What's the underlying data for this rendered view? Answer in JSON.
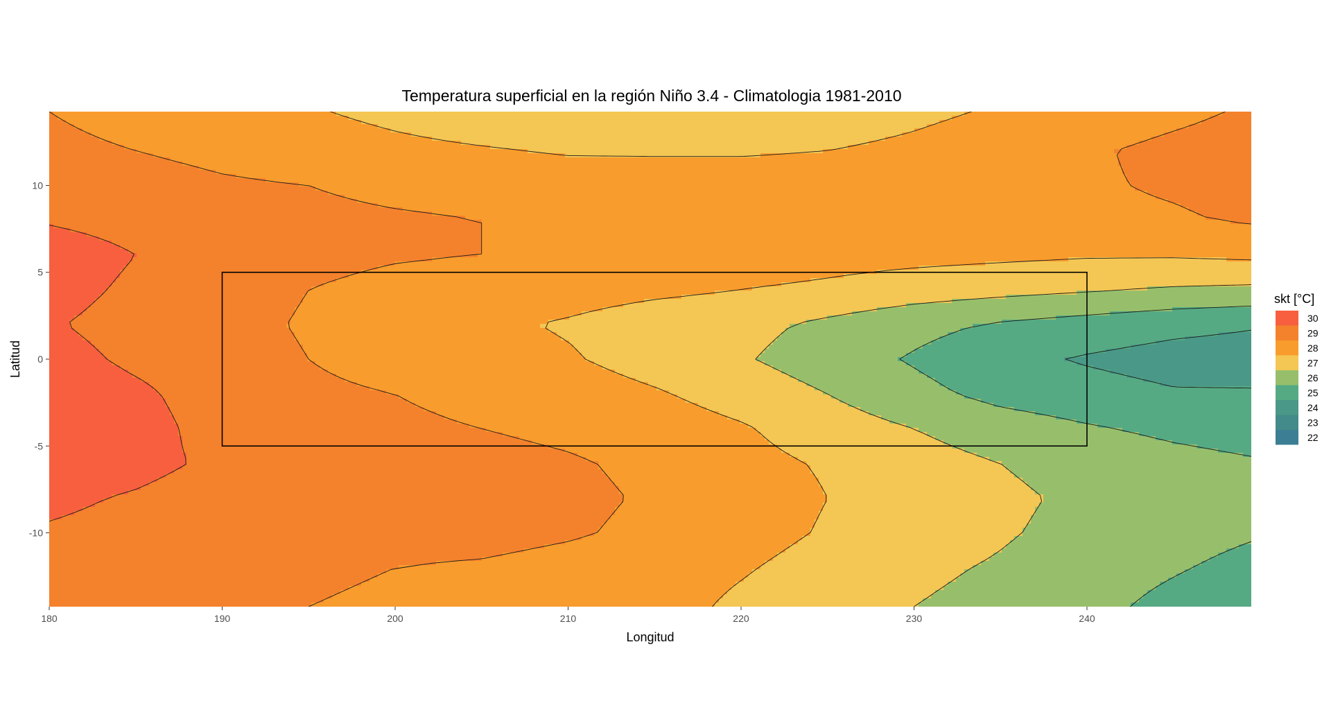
{
  "chart_data": {
    "type": "contour",
    "title": "Temperatura superficial en la región Niño 3.4 - Climatologia 1981-2010",
    "xlabel": "Longitud",
    "ylabel": "Latitud",
    "xlim": [
      180,
      249.5
    ],
    "ylim": [
      -14.25,
      14.25
    ],
    "x_ticks": [
      180,
      190,
      200,
      210,
      220,
      230,
      240
    ],
    "y_ticks": [
      -10,
      -5,
      0,
      5,
      10
    ],
    "x_tick_labels": [
      "180",
      "190",
      "200",
      "210",
      "220",
      "230",
      "240"
    ],
    "y_tick_labels": [
      "-10",
      "-5",
      "0",
      "5",
      "10"
    ],
    "grid": false,
    "legend": {
      "title": "skt [°C]",
      "placement": "right",
      "levels": [
        "30",
        "29",
        "28",
        "27",
        "26",
        "25",
        "24",
        "23",
        "22"
      ],
      "colors": [
        "#F75F3E",
        "#F4812C",
        "#F89C2D",
        "#F4C653",
        "#97BF6B",
        "#55AA84",
        "#4A9887",
        "#438B8A",
        "#3C7E94"
      ]
    },
    "region_box": {
      "name": "Niño 3.4",
      "lon": [
        190,
        240
      ],
      "lat": [
        -5,
        5
      ]
    },
    "field": {
      "lon": [
        180,
        185,
        190,
        195,
        200,
        205,
        210,
        215,
        220,
        225,
        230,
        235,
        240,
        245,
        249.5
      ],
      "lat": [
        -14.25,
        -12,
        -10,
        -8,
        -6,
        -4,
        -2,
        0,
        2,
        4,
        6,
        8,
        10,
        12,
        14.25
      ],
      "values": [
        [
          28.8,
          28.7,
          28.6,
          28.5,
          28.4,
          28.3,
          28.1,
          27.9,
          27.3,
          26.8,
          26.5,
          26.2,
          25.8,
          25.2,
          24.6
        ],
        [
          29.0,
          28.9,
          28.8,
          28.6,
          28.5,
          28.4,
          28.2,
          28.0,
          27.6,
          27.1,
          26.7,
          26.4,
          26.0,
          25.6,
          25.2
        ],
        [
          29.4,
          29.2,
          29.0,
          28.9,
          28.8,
          28.8,
          28.6,
          28.3,
          27.9,
          27.4,
          27.0,
          26.6,
          26.2,
          25.9,
          25.6
        ],
        [
          29.7,
          29.4,
          29.0,
          29.0,
          28.9,
          28.9,
          28.7,
          28.4,
          28.0,
          27.5,
          27.1,
          26.7,
          26.3,
          26.0,
          25.8
        ],
        [
          30.1,
          29.8,
          29.3,
          29.0,
          28.9,
          28.8,
          28.6,
          28.3,
          27.8,
          27.4,
          26.9,
          26.5,
          26.1,
          25.8,
          25.6
        ],
        [
          30.3,
          29.9,
          29.1,
          28.8,
          28.7,
          28.5,
          28.3,
          28.0,
          27.6,
          27.0,
          26.5,
          26.0,
          25.6,
          25.3,
          25.1
        ],
        [
          30.2,
          29.7,
          29.0,
          28.7,
          28.5,
          28.2,
          28.0,
          27.6,
          27.1,
          26.5,
          25.8,
          25.2,
          24.9,
          24.6,
          24.6
        ],
        [
          29.9,
          29.3,
          28.9,
          28.5,
          28.1,
          27.9,
          27.6,
          27.1,
          26.6,
          26.0,
          25.4,
          24.8,
          24.4,
          24.1,
          24.0
        ],
        [
          29.6,
          29.1,
          28.8,
          28.4,
          28.0,
          27.7,
          27.4,
          27.0,
          26.8,
          26.3,
          25.8,
          25.4,
          25.1,
          24.8,
          24.6
        ],
        [
          29.9,
          29.3,
          28.9,
          28.5,
          28.2,
          28.0,
          27.9,
          27.7,
          27.5,
          27.3,
          27.0,
          26.8,
          26.6,
          26.4,
          26.3
        ],
        [
          30.1,
          29.5,
          29.0,
          28.8,
          28.6,
          28.5,
          28.4,
          28.3,
          28.1,
          27.9,
          27.8,
          27.7,
          27.6,
          27.6,
          27.7
        ],
        [
          29.4,
          29.1,
          28.9,
          28.7,
          28.6,
          28.5,
          28.4,
          28.4,
          28.3,
          28.3,
          28.2,
          28.2,
          28.3,
          28.4,
          28.6
        ],
        [
          28.9,
          28.8,
          28.6,
          28.5,
          28.3,
          28.2,
          28.1,
          28.0,
          28.0,
          28.0,
          28.1,
          28.2,
          28.4,
          28.6,
          28.8
        ],
        [
          28.7,
          28.5,
          28.3,
          28.1,
          27.8,
          27.6,
          27.4,
          27.4,
          27.4,
          27.5,
          27.7,
          28.0,
          28.4,
          28.7,
          28.9
        ],
        [
          28.5,
          28.2,
          27.9,
          27.6,
          27.2,
          26.8,
          26.6,
          26.6,
          26.8,
          27.0,
          27.3,
          27.6,
          28.0,
          28.3,
          28.6
        ]
      ]
    }
  }
}
